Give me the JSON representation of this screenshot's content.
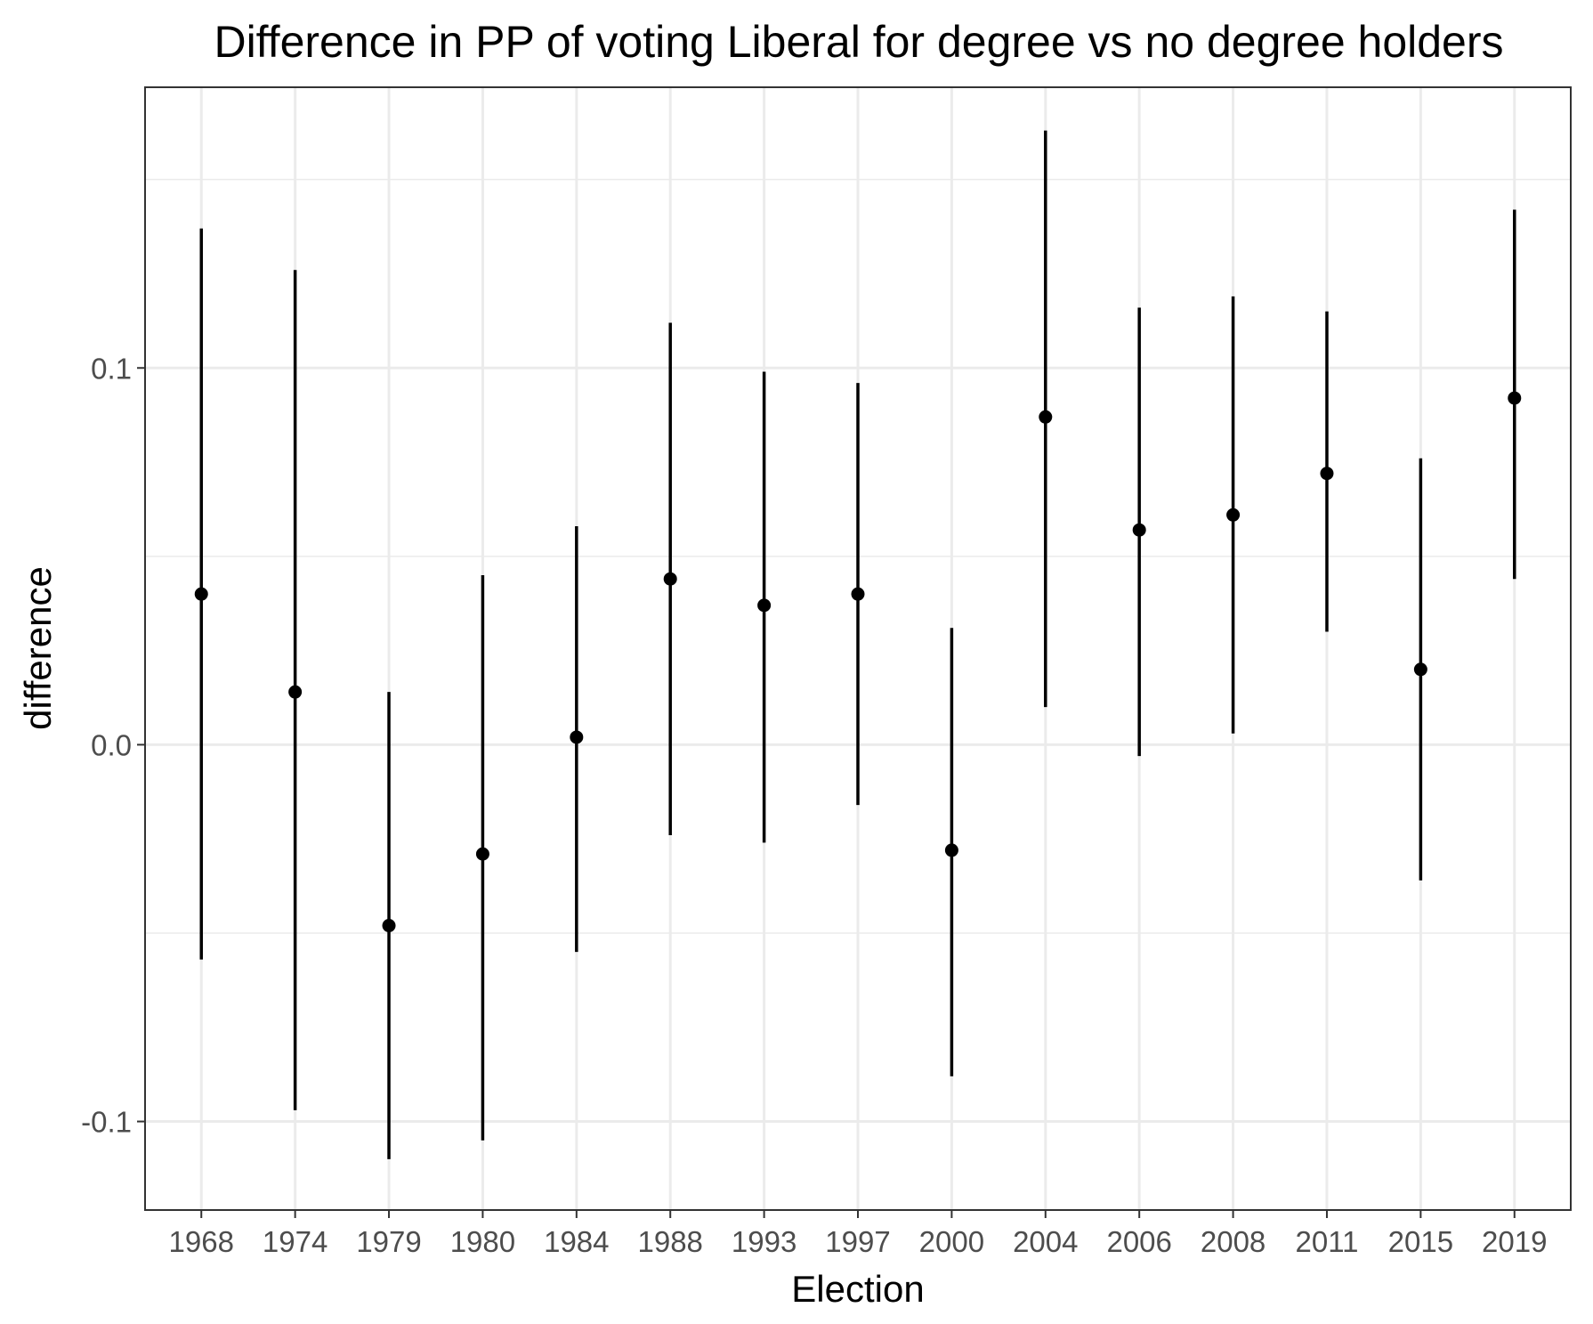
{
  "chart_data": {
    "type": "scatter",
    "title": "Difference in PP of voting Liberal for degree vs no degree holders",
    "xlabel": "Election",
    "ylabel": "difference",
    "categories": [
      "1968",
      "1974",
      "1979",
      "1980",
      "1984",
      "1988",
      "1993",
      "1997",
      "2000",
      "2004",
      "2006",
      "2008",
      "2011",
      "2015",
      "2019"
    ],
    "series": [
      {
        "values": [
          0.04,
          0.014,
          -0.048,
          -0.029,
          0.002,
          0.044,
          0.037,
          0.04,
          -0.028,
          0.087,
          0.057,
          0.061,
          0.072,
          0.02,
          0.092
        ],
        "lower": [
          -0.057,
          -0.097,
          -0.11,
          -0.105,
          -0.055,
          -0.024,
          -0.026,
          -0.016,
          -0.088,
          0.01,
          -0.003,
          0.003,
          0.03,
          -0.036,
          0.044
        ],
        "upper": [
          0.137,
          0.126,
          0.014,
          0.045,
          0.058,
          0.112,
          0.099,
          0.096,
          0.031,
          0.163,
          0.116,
          0.119,
          0.115,
          0.076,
          0.142
        ]
      }
    ],
    "ylim": [
      -0.1235,
      0.1745
    ],
    "y_ticks": [
      -0.1,
      0.0,
      0.1
    ],
    "y_tick_labels": [
      "-0.1",
      "0.0",
      "0.1"
    ],
    "y_minor_ticks": [
      -0.05,
      0.05,
      0.15
    ],
    "grid": true,
    "theme": "bw"
  }
}
